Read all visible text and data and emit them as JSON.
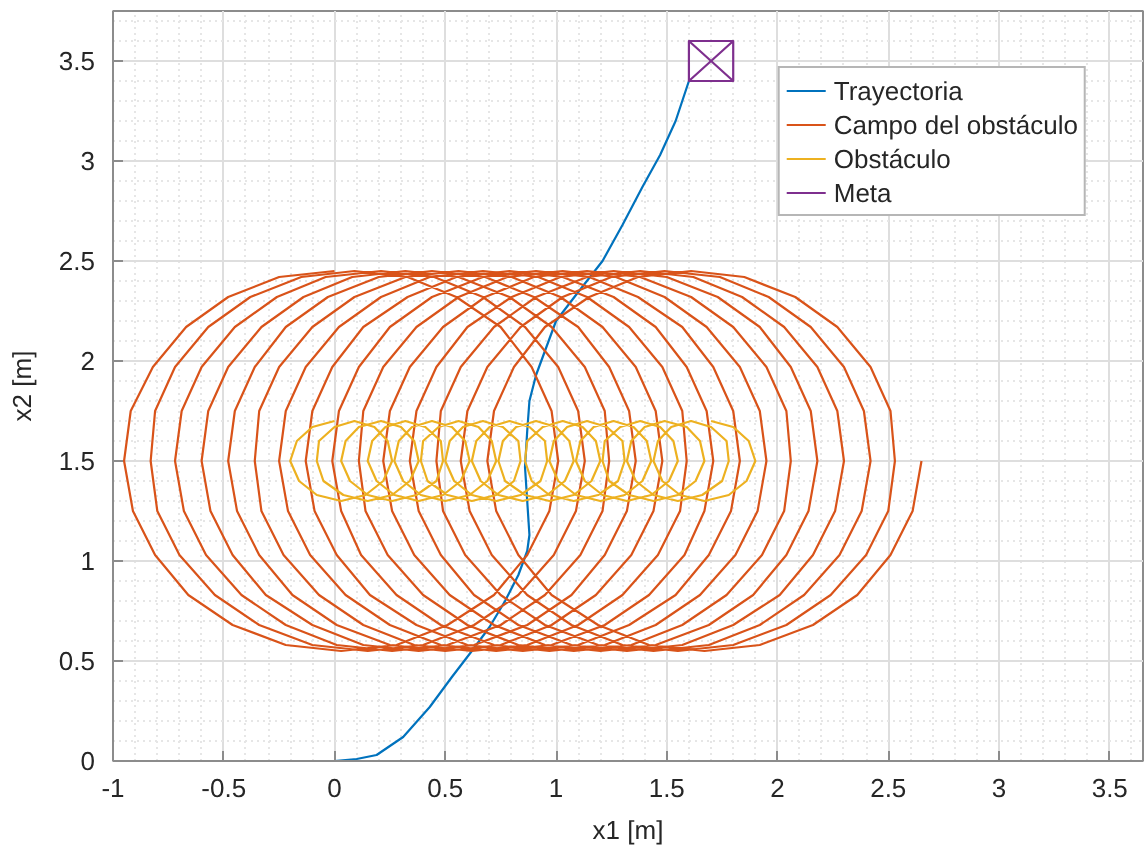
{
  "chart_data": {
    "type": "line",
    "xlabel": "x1 [m]",
    "ylabel": "x2 [m]",
    "xlim": [
      -1,
      3.65
    ],
    "ylim": [
      0,
      3.75
    ],
    "xticks": [
      -1,
      -0.5,
      0,
      0.5,
      1,
      1.5,
      2,
      2.5,
      3,
      3.5
    ],
    "yticks": [
      0,
      0.5,
      1,
      1.5,
      2,
      2.5,
      3,
      3.5
    ],
    "grid": true,
    "legend": "top right",
    "series": [
      {
        "name": "Trayectoria",
        "color": "#0072bd",
        "x": [
          0,
          0.1,
          0.19,
          0.31,
          0.43,
          0.53,
          0.62,
          0.7,
          0.77,
          0.83,
          0.87,
          0.88,
          0.87,
          0.86,
          0.87,
          0.88,
          0.91,
          0.96,
          1.0,
          1.09,
          1.21,
          1.3,
          1.39,
          1.47,
          1.54,
          1.57,
          1.6
        ],
        "values": [
          0,
          0.01,
          0.03,
          0.12,
          0.27,
          0.42,
          0.55,
          0.67,
          0.8,
          0.93,
          1.05,
          1.13,
          1.3,
          1.47,
          1.65,
          1.8,
          1.93,
          2.08,
          2.2,
          2.33,
          2.5,
          2.68,
          2.87,
          3.03,
          3.2,
          3.3,
          3.4
        ]
      },
      {
        "name": "Campo del obstáculo",
        "color": "#d95319",
        "x": [
          0,
          -0.25,
          -0.48,
          -0.67,
          -0.82,
          -0.92,
          -0.95,
          -0.91,
          -0.81,
          -0.66,
          -0.46,
          -0.22,
          0.03,
          0.28,
          0.51,
          0.72,
          0.87,
          0.97,
          1.01,
          0.98,
          0.89,
          0.75,
          0.55,
          0.33,
          0.09,
          -0.15,
          -0.38,
          -0.57,
          -0.72,
          -0.81,
          -0.83,
          -0.8,
          -0.7,
          -0.54,
          -0.34,
          -0.1,
          0.15,
          0.4,
          0.63,
          0.83,
          0.99,
          1.09,
          1.13,
          1.1,
          1.01,
          0.86,
          0.67,
          0.45,
          0.21,
          -0.04,
          -0.26,
          -0.45,
          -0.6,
          -0.69,
          -0.72,
          -0.68,
          -0.58,
          -0.42,
          -0.22,
          0.01,
          0.26,
          0.51,
          0.75,
          0.95,
          1.11,
          1.21,
          1.24,
          1.22,
          1.13,
          0.98,
          0.79,
          0.56,
          0.32,
          0.08,
          -0.14,
          -0.33,
          -0.48,
          -0.57,
          -0.6,
          -0.56,
          -0.46,
          -0.31,
          -0.1,
          0.13,
          0.38,
          0.63,
          0.87,
          1.07,
          1.22,
          1.32,
          1.36,
          1.33,
          1.24,
          1.1,
          0.9,
          0.68,
          0.44,
          0.2,
          -0.03,
          -0.22,
          -0.36,
          -0.45,
          -0.48,
          -0.44,
          -0.34,
          -0.19,
          0.01,
          0.25,
          0.5,
          0.75,
          0.98,
          1.18,
          1.34,
          1.44,
          1.48,
          1.45,
          1.36,
          1.21,
          1.02,
          0.8,
          0.56,
          0.32,
          0.09,
          -0.1,
          -0.25,
          -0.34,
          -0.36,
          -0.33,
          -0.23,
          -0.07,
          0.13,
          0.36,
          0.62,
          0.87,
          1.1,
          1.3,
          1.46,
          1.56,
          1.59,
          1.57,
          1.48,
          1.33,
          1.14,
          0.92,
          0.67,
          0.43,
          0.21,
          0.02,
          -0.13,
          -0.22,
          -0.25,
          -0.21,
          -0.11,
          0.05,
          0.25,
          0.48,
          0.73,
          0.98,
          1.22,
          1.42,
          1.58,
          1.67,
          1.71,
          1.68,
          1.59,
          1.45,
          1.26,
          1.03,
          0.79,
          0.55,
          0.33,
          0.13,
          -0.01,
          -0.1,
          -0.13,
          -0.09,
          0.01,
          0.16,
          0.37,
          0.6,
          0.85,
          1.1,
          1.33,
          1.54,
          1.69,
          1.79,
          1.83,
          1.8,
          1.71,
          1.57,
          1.37,
          1.15,
          0.91,
          0.67,
          0.44,
          0.25,
          0.11,
          0.02,
          -0.01,
          0.03,
          0.12,
          0.28,
          0.48,
          0.72,
          0.97,
          1.22,
          1.45,
          1.65,
          1.81,
          1.91,
          1.95,
          1.92,
          1.83,
          1.68,
          1.49,
          1.27,
          1.03,
          0.78,
          0.56,
          0.37,
          0.22,
          0.13,
          0.11,
          0.14,
          0.24,
          0.4,
          0.6,
          0.83,
          1.08,
          1.34,
          1.57,
          1.77,
          1.93,
          2.03,
          2.06,
          2.04,
          1.95,
          1.8,
          1.61,
          1.38,
          1.14,
          0.9,
          0.68,
          0.49,
          0.34,
          0.25,
          0.22,
          0.26,
          0.36,
          0.52,
          0.72,
          0.95,
          1.2,
          1.45,
          1.69,
          1.89,
          2.04,
          2.14,
          2.18,
          2.15,
          2.06,
          1.92,
          1.73,
          1.5,
          1.26,
          1.02,
          0.8,
          0.6,
          0.46,
          0.37,
          0.34,
          0.38,
          0.48,
          0.63,
          0.83,
          1.07,
          1.32,
          1.57,
          1.8,
          2.01,
          2.16,
          2.26,
          2.3,
          2.27,
          2.18,
          2.03,
          1.84,
          1.62,
          1.38,
          1.14,
          0.91,
          0.72,
          0.57,
          0.48,
          0.46,
          0.49,
          0.59,
          0.75,
          0.95,
          1.19,
          1.44,
          1.69,
          1.92,
          2.12,
          2.28,
          2.38,
          2.42,
          2.39,
          2.3,
          2.15,
          1.96,
          1.74,
          1.49,
          1.25,
          1.03,
          0.84,
          0.69,
          0.6,
          0.57,
          0.61,
          0.71,
          0.87,
          1.07,
          1.3,
          1.55,
          1.8,
          2.04,
          2.24,
          2.4,
          2.5,
          2.53,
          2.51,
          2.42,
          2.27,
          2.08,
          1.85,
          1.61,
          1.37,
          1.15,
          0.95,
          0.81,
          0.72,
          0.69,
          0.73,
          0.83,
          0.98,
          1.19,
          1.42,
          1.67,
          1.92,
          2.16,
          2.36,
          2.51,
          2.61,
          2.65
        ],
        "values": [
          2.45,
          2.42,
          2.32,
          2.17,
          1.97,
          1.75,
          1.5,
          1.25,
          1.03,
          0.83,
          0.68,
          0.58,
          0.55,
          0.58,
          0.68,
          0.83,
          1.03,
          1.25,
          1.5,
          1.75,
          1.97,
          2.17,
          2.32,
          2.42,
          2.45,
          2.42,
          2.32,
          2.17,
          1.97,
          1.75,
          1.5,
          1.25,
          1.03,
          0.83,
          0.68,
          0.58,
          0.55,
          0.58,
          0.68,
          0.83,
          1.03,
          1.25,
          1.5,
          1.75,
          1.97,
          2.17,
          2.32,
          2.42,
          2.45,
          2.42,
          2.32,
          2.17,
          1.97,
          1.75,
          1.5,
          1.25,
          1.03,
          0.83,
          0.68,
          0.58,
          0.55,
          0.58,
          0.68,
          0.83,
          1.03,
          1.25,
          1.5,
          1.75,
          1.97,
          2.17,
          2.32,
          2.42,
          2.45,
          2.42,
          2.32,
          2.17,
          1.97,
          1.75,
          1.5,
          1.25,
          1.03,
          0.83,
          0.68,
          0.58,
          0.55,
          0.58,
          0.68,
          0.83,
          1.03,
          1.25,
          1.5,
          1.75,
          1.97,
          2.17,
          2.32,
          2.42,
          2.45,
          2.42,
          2.32,
          2.17,
          1.97,
          1.75,
          1.5,
          1.25,
          1.03,
          0.83,
          0.68,
          0.58,
          0.55,
          0.58,
          0.68,
          0.83,
          1.03,
          1.25,
          1.5,
          1.75,
          1.97,
          2.17,
          2.32,
          2.42,
          2.45,
          2.42,
          2.32,
          2.17,
          1.97,
          1.75,
          1.5,
          1.25,
          1.03,
          0.83,
          0.68,
          0.58,
          0.55,
          0.58,
          0.68,
          0.83,
          1.03,
          1.25,
          1.5,
          1.75,
          1.97,
          2.17,
          2.32,
          2.42,
          2.45,
          2.42,
          2.32,
          2.17,
          1.97,
          1.75,
          1.5,
          1.25,
          1.03,
          0.83,
          0.68,
          0.58,
          0.55,
          0.58,
          0.68,
          0.83,
          1.03,
          1.25,
          1.5,
          1.75,
          1.97,
          2.17,
          2.32,
          2.42,
          2.45,
          2.42,
          2.32,
          2.17,
          1.97,
          1.75,
          1.5,
          1.25,
          1.03,
          0.83,
          0.68,
          0.58,
          0.55,
          0.58,
          0.68,
          0.83,
          1.03,
          1.25,
          1.5,
          1.75,
          1.97,
          2.17,
          2.32,
          2.42,
          2.45,
          2.42,
          2.32,
          2.17,
          1.97,
          1.75,
          1.5,
          1.25,
          1.03,
          0.83,
          0.68,
          0.58,
          0.55,
          0.58,
          0.68,
          0.83,
          1.03,
          1.25,
          1.5,
          1.75,
          1.97,
          2.17,
          2.32,
          2.42,
          2.45,
          2.42,
          2.32,
          2.17,
          1.97,
          1.75,
          1.5,
          1.25,
          1.03,
          0.83,
          0.68,
          0.58,
          0.55,
          0.58,
          0.68,
          0.83,
          1.03,
          1.25,
          1.5,
          1.75,
          1.97,
          2.17,
          2.32,
          2.42,
          2.45,
          2.42,
          2.32,
          2.17,
          1.97,
          1.75,
          1.5,
          1.25,
          1.03,
          0.83,
          0.68,
          0.58,
          0.55,
          0.58,
          0.68,
          0.83,
          1.03,
          1.25,
          1.5,
          1.75,
          1.97,
          2.17,
          2.32,
          2.42,
          2.45,
          2.42,
          2.32,
          2.17,
          1.97,
          1.75,
          1.5,
          1.25,
          1.03,
          0.83,
          0.68,
          0.58,
          0.55,
          0.58,
          0.68,
          0.83,
          1.03,
          1.25,
          1.5,
          1.75,
          1.97,
          2.17,
          2.32,
          2.42,
          2.45,
          2.42,
          2.32,
          2.17,
          1.97,
          1.75,
          1.5,
          1.25,
          1.03,
          0.83,
          0.68,
          0.58,
          0.55,
          0.58,
          0.68,
          0.83,
          1.03,
          1.25,
          1.5,
          1.75,
          1.97,
          2.17,
          2.32,
          2.42,
          2.45,
          2.42,
          2.32,
          2.17,
          1.97,
          1.75,
          1.5,
          1.25,
          1.03,
          0.83,
          0.68,
          0.58,
          0.55,
          0.58,
          0.68,
          0.83,
          1.03,
          1.25,
          1.5,
          1.75,
          1.97,
          2.17,
          2.32,
          2.42,
          2.45,
          2.42,
          2.32,
          2.17,
          1.97,
          1.75,
          1.5,
          1.25,
          1.03,
          0.83,
          0.68,
          0.58,
          0.55,
          0.58,
          0.68,
          0.83,
          1.03,
          1.25,
          1.5
        ]
      },
      {
        "name": "Obstáculo",
        "color": "#edb120",
        "x": [
          0,
          -0.1,
          -0.17,
          -0.2,
          -0.16,
          -0.08,
          0.03,
          0.14,
          0.22,
          0.26,
          0.24,
          0.18,
          0.09,
          0.0,
          -0.07,
          -0.08,
          -0.05,
          0.04,
          0.15,
          0.26,
          0.34,
          0.38,
          0.36,
          0.3,
          0.21,
          0.11,
          0.05,
          0.03,
          0.07,
          0.15,
          0.26,
          0.37,
          0.46,
          0.49,
          0.48,
          0.41,
          0.32,
          0.23,
          0.17,
          0.15,
          0.19,
          0.27,
          0.38,
          0.49,
          0.57,
          0.61,
          0.59,
          0.53,
          0.44,
          0.35,
          0.29,
          0.27,
          0.31,
          0.39,
          0.5,
          0.61,
          0.69,
          0.73,
          0.71,
          0.65,
          0.56,
          0.47,
          0.4,
          0.39,
          0.42,
          0.51,
          0.62,
          0.73,
          0.81,
          0.84,
          0.83,
          0.76,
          0.67,
          0.58,
          0.52,
          0.5,
          0.54,
          0.62,
          0.73,
          0.84,
          0.93,
          0.96,
          0.95,
          0.88,
          0.79,
          0.7,
          0.64,
          0.62,
          0.66,
          0.74,
          0.85,
          0.96,
          1.04,
          1.08,
          1.06,
          1.0,
          0.91,
          0.82,
          0.76,
          0.74,
          0.77,
          0.86,
          0.97,
          1.08,
          1.16,
          1.2,
          1.18,
          1.12,
          1.03,
          0.94,
          0.87,
          0.86,
          0.89,
          0.97,
          1.08,
          1.19,
          1.28,
          1.31,
          1.3,
          1.23,
          1.14,
          1.05,
          0.99,
          0.97,
          1.01,
          1.09,
          1.2,
          1.31,
          1.39,
          1.43,
          1.41,
          1.35,
          1.26,
          1.17,
          1.11,
          1.09,
          1.13,
          1.21,
          1.32,
          1.43,
          1.51,
          1.55,
          1.53,
          1.47,
          1.38,
          1.29,
          1.22,
          1.21,
          1.24,
          1.33,
          1.44,
          1.55,
          1.63,
          1.67,
          1.65,
          1.59,
          1.49,
          1.4,
          1.34,
          1.32,
          1.36,
          1.44,
          1.55,
          1.66,
          1.75,
          1.78,
          1.77,
          1.7,
          1.61,
          1.52,
          1.46,
          1.44,
          1.48,
          1.56,
          1.67,
          1.78,
          1.86,
          1.9,
          1.87,
          1.8,
          1.7
        ],
        "values": [
          1.7,
          1.67,
          1.6,
          1.5,
          1.4,
          1.33,
          1.3,
          1.33,
          1.4,
          1.5,
          1.6,
          1.67,
          1.7,
          1.67,
          1.6,
          1.5,
          1.4,
          1.33,
          1.3,
          1.33,
          1.4,
          1.5,
          1.6,
          1.67,
          1.7,
          1.67,
          1.6,
          1.5,
          1.4,
          1.33,
          1.3,
          1.33,
          1.4,
          1.5,
          1.6,
          1.67,
          1.7,
          1.67,
          1.6,
          1.5,
          1.4,
          1.33,
          1.3,
          1.33,
          1.4,
          1.5,
          1.6,
          1.67,
          1.7,
          1.67,
          1.6,
          1.5,
          1.4,
          1.33,
          1.3,
          1.33,
          1.4,
          1.5,
          1.6,
          1.67,
          1.7,
          1.67,
          1.6,
          1.5,
          1.4,
          1.33,
          1.3,
          1.33,
          1.4,
          1.5,
          1.6,
          1.67,
          1.7,
          1.67,
          1.6,
          1.5,
          1.4,
          1.33,
          1.3,
          1.33,
          1.4,
          1.5,
          1.6,
          1.67,
          1.7,
          1.67,
          1.6,
          1.5,
          1.4,
          1.33,
          1.3,
          1.33,
          1.4,
          1.5,
          1.6,
          1.67,
          1.7,
          1.67,
          1.6,
          1.5,
          1.4,
          1.33,
          1.3,
          1.33,
          1.4,
          1.5,
          1.6,
          1.67,
          1.7,
          1.67,
          1.6,
          1.5,
          1.4,
          1.33,
          1.3,
          1.33,
          1.4,
          1.5,
          1.6,
          1.67,
          1.7,
          1.67,
          1.6,
          1.5,
          1.4,
          1.33,
          1.3,
          1.33,
          1.4,
          1.5,
          1.6,
          1.67,
          1.7,
          1.67,
          1.6,
          1.5,
          1.4,
          1.33,
          1.3,
          1.33,
          1.4,
          1.5,
          1.6,
          1.67,
          1.7,
          1.67,
          1.6,
          1.5,
          1.4,
          1.33,
          1.3,
          1.33,
          1.4,
          1.5,
          1.6,
          1.67,
          1.7,
          1.67,
          1.6,
          1.5,
          1.4,
          1.33,
          1.3,
          1.33,
          1.4,
          1.5,
          1.6,
          1.67,
          1.7,
          1.67,
          1.6,
          1.5,
          1.4,
          1.33,
          1.3,
          1.33,
          1.4,
          1.5,
          1.6,
          1.67,
          1.7
        ]
      },
      {
        "name": "Meta",
        "color": "#7e2f8e",
        "x": [
          1.6,
          1.8,
          1.8,
          1.6,
          1.6,
          1.8,
          1.6,
          1.8
        ],
        "values": [
          3.4,
          3.4,
          3.6,
          3.6,
          3.4,
          3.6,
          3.6,
          3.4
        ]
      }
    ]
  }
}
